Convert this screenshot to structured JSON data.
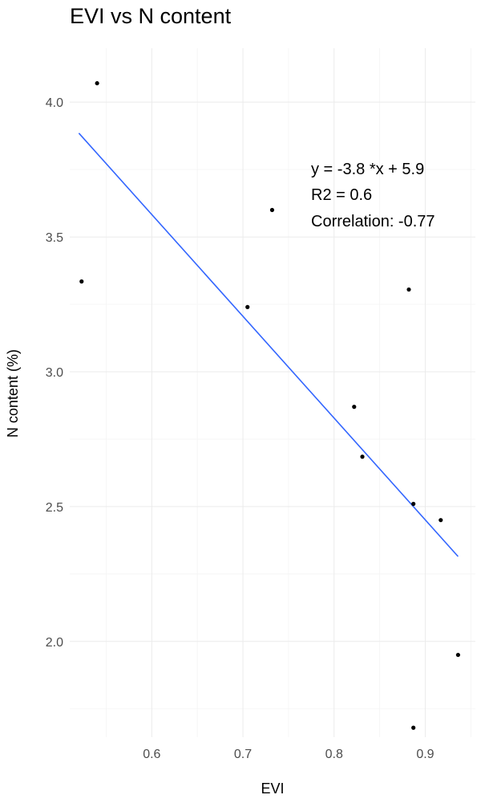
{
  "chart_data": {
    "type": "scatter",
    "title": "EVI vs N content",
    "xlabel": "EVI",
    "ylabel": "N content (%)",
    "xlim": [
      0.51,
      0.955
    ],
    "ylim": [
      1.645,
      4.2
    ],
    "x_ticks": [
      0.6,
      0.7,
      0.8,
      0.9
    ],
    "x_tick_labels": [
      "0.6",
      "0.7",
      "0.8",
      "0.9"
    ],
    "y_ticks": [
      2.0,
      2.5,
      3.0,
      3.5,
      4.0
    ],
    "y_tick_labels": [
      "2.0",
      "2.5",
      "3.0",
      "3.5",
      "4.0"
    ],
    "grid": true,
    "points": [
      {
        "x": 0.54,
        "y": 4.07
      },
      {
        "x": 0.523,
        "y": 3.335
      },
      {
        "x": 0.705,
        "y": 3.24
      },
      {
        "x": 0.732,
        "y": 3.6
      },
      {
        "x": 0.822,
        "y": 2.87
      },
      {
        "x": 0.831,
        "y": 2.685
      },
      {
        "x": 0.882,
        "y": 3.305
      },
      {
        "x": 0.887,
        "y": 2.51
      },
      {
        "x": 0.917,
        "y": 2.45
      },
      {
        "x": 0.936,
        "y": 1.95
      },
      {
        "x": 0.887,
        "y": 1.68
      }
    ],
    "point_color": "#000000",
    "fit_line": {
      "x": [
        0.52,
        0.936
      ],
      "y": [
        3.885,
        2.315
      ],
      "color": "#3366ff"
    },
    "annotations": [
      "y = -3.8 *x + 5.9",
      "R2 = 0.6",
      "Correlation: -0.77"
    ]
  }
}
